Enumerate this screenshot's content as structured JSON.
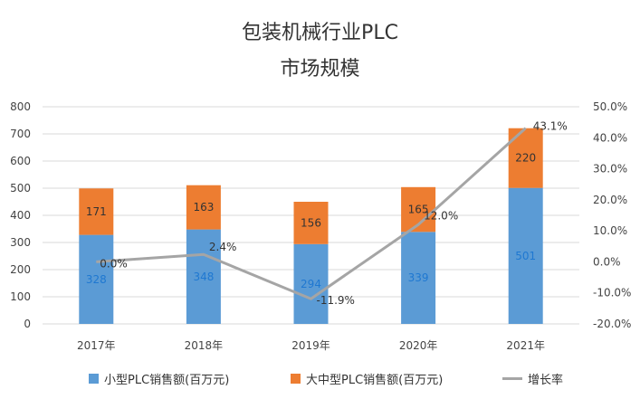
{
  "title_line1": "包装机械行业PLC",
  "title_line2": "市场规模",
  "colors": {
    "small": "#5b9bd5",
    "large": "#ed7d31",
    "growth": "#a5a5a5",
    "grid": "#d9d9d9",
    "small_label": "#1f78d1",
    "large_label": "#333333"
  },
  "chart_data": {
    "type": "bar",
    "stacked": true,
    "categories": [
      "2017年",
      "2018年",
      "2019年",
      "2020年",
      "2021年"
    ],
    "series": [
      {
        "name": "小型PLC销售额(百万元)",
        "values": [
          328,
          348,
          294,
          339,
          501
        ]
      },
      {
        "name": "大中型PLC销售额(百万元)",
        "values": [
          171,
          163,
          156,
          165,
          220
        ]
      }
    ],
    "line_series": {
      "name": "增长率",
      "values": [
        0.0,
        2.4,
        -11.9,
        12.0,
        43.1
      ],
      "labels": [
        "0.0%",
        "2.4%",
        "-11.9%",
        "12.0%",
        "43.1%"
      ],
      "axis": "right"
    },
    "ylim": [
      0,
      800
    ],
    "yticks": [
      0,
      100,
      200,
      300,
      400,
      500,
      600,
      700,
      800
    ],
    "y2lim": [
      -20,
      50
    ],
    "y2ticks": [
      -20,
      -10,
      0,
      10,
      20,
      30,
      40,
      50
    ],
    "y2tick_labels": [
      "-20.0%",
      "-10.0%",
      "0.0%",
      "10.0%",
      "20.0%",
      "30.0%",
      "40.0%",
      "50.0%"
    ],
    "legend": [
      "小型PLC销售额(百万元)",
      "大中型PLC销售额(百万元)",
      "增长率"
    ]
  }
}
